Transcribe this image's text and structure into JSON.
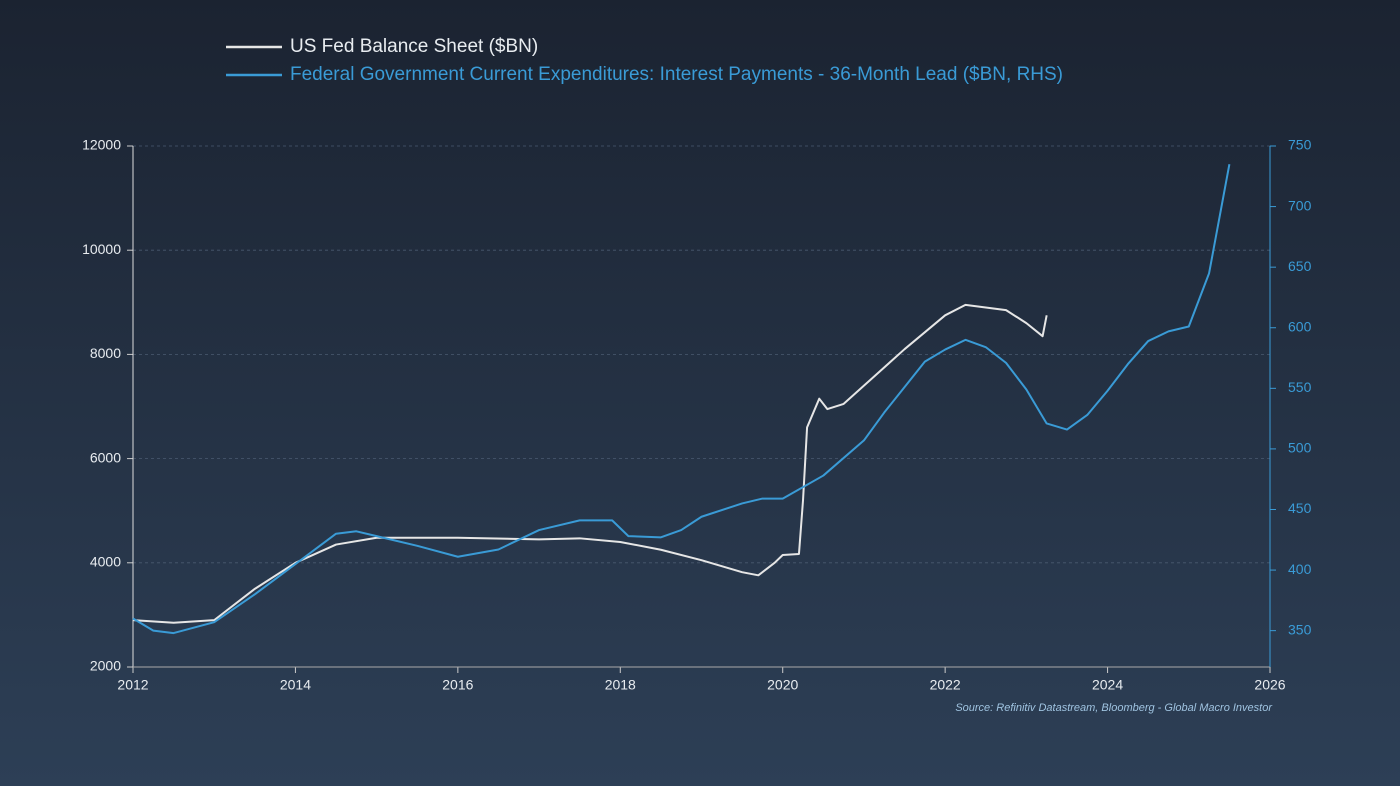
{
  "chart_data": {
    "type": "line",
    "xlim": [
      2012,
      2026
    ],
    "xticks": [
      2012,
      2014,
      2016,
      2018,
      2020,
      2022,
      2024,
      2026
    ],
    "ylim": [
      2000,
      12000
    ],
    "yticks": [
      2000,
      4000,
      6000,
      8000,
      10000,
      12000
    ],
    "y2lim": [
      320,
      750
    ],
    "y2ticks": [
      350,
      400,
      450,
      500,
      550,
      600,
      650,
      700,
      750
    ],
    "grid": true,
    "annotation": "Source: Refinitiv Datastream, Bloomberg - Global Macro Investor",
    "series": [
      {
        "name": "US Fed Balance Sheet ($BN)",
        "color": "#e6e6e6",
        "x": [
          2012,
          2012.5,
          2013,
          2013.5,
          2014,
          2014.5,
          2015,
          2016,
          2017,
          2017.5,
          2018,
          2018.5,
          2019,
          2019.5,
          2019.7,
          2019.9,
          2020.0,
          2020.2,
          2020.25,
          2020.3,
          2020.45,
          2020.55,
          2020.75,
          2021,
          2021.5,
          2022,
          2022.25,
          2022.75,
          2023,
          2023.2,
          2023.25
        ],
        "values": [
          2900,
          2850,
          2900,
          3500,
          4000,
          4350,
          4480,
          4480,
          4450,
          4470,
          4400,
          4250,
          4050,
          3820,
          3760,
          4000,
          4150,
          4170,
          5200,
          6600,
          7150,
          6950,
          7050,
          7400,
          8100,
          8750,
          8950,
          8850,
          8600,
          8350,
          8750
        ]
      },
      {
        "name": "Federal Government Current Expenditures: Interest Payments - 36-Month Lead ($BN, RHS)",
        "color": "#3a9bd6",
        "axis": "y2",
        "x": [
          2012,
          2012.25,
          2012.5,
          2013,
          2013.5,
          2014,
          2014.5,
          2014.75,
          2015,
          2015.5,
          2016,
          2016.5,
          2017,
          2017.5,
          2017.9,
          2018.1,
          2018.5,
          2018.75,
          2019,
          2019.5,
          2019.75,
          2020,
          2020.5,
          2021,
          2021.25,
          2021.75,
          2022,
          2022.25,
          2022.5,
          2022.75,
          2023,
          2023.25,
          2023.5,
          2023.75,
          2024,
          2024.25,
          2024.5,
          2024.75,
          2025,
          2025.25,
          2025.5
        ],
        "values": [
          360,
          350,
          348,
          357,
          380,
          405,
          430,
          432,
          428,
          420,
          411,
          417,
          433,
          441,
          441,
          428,
          427,
          433,
          444,
          455,
          459,
          459,
          478,
          507,
          530,
          572,
          582,
          590,
          584,
          571,
          549,
          521,
          516,
          528,
          548,
          570,
          589,
          597,
          601,
          645,
          735
        ]
      }
    ]
  }
}
